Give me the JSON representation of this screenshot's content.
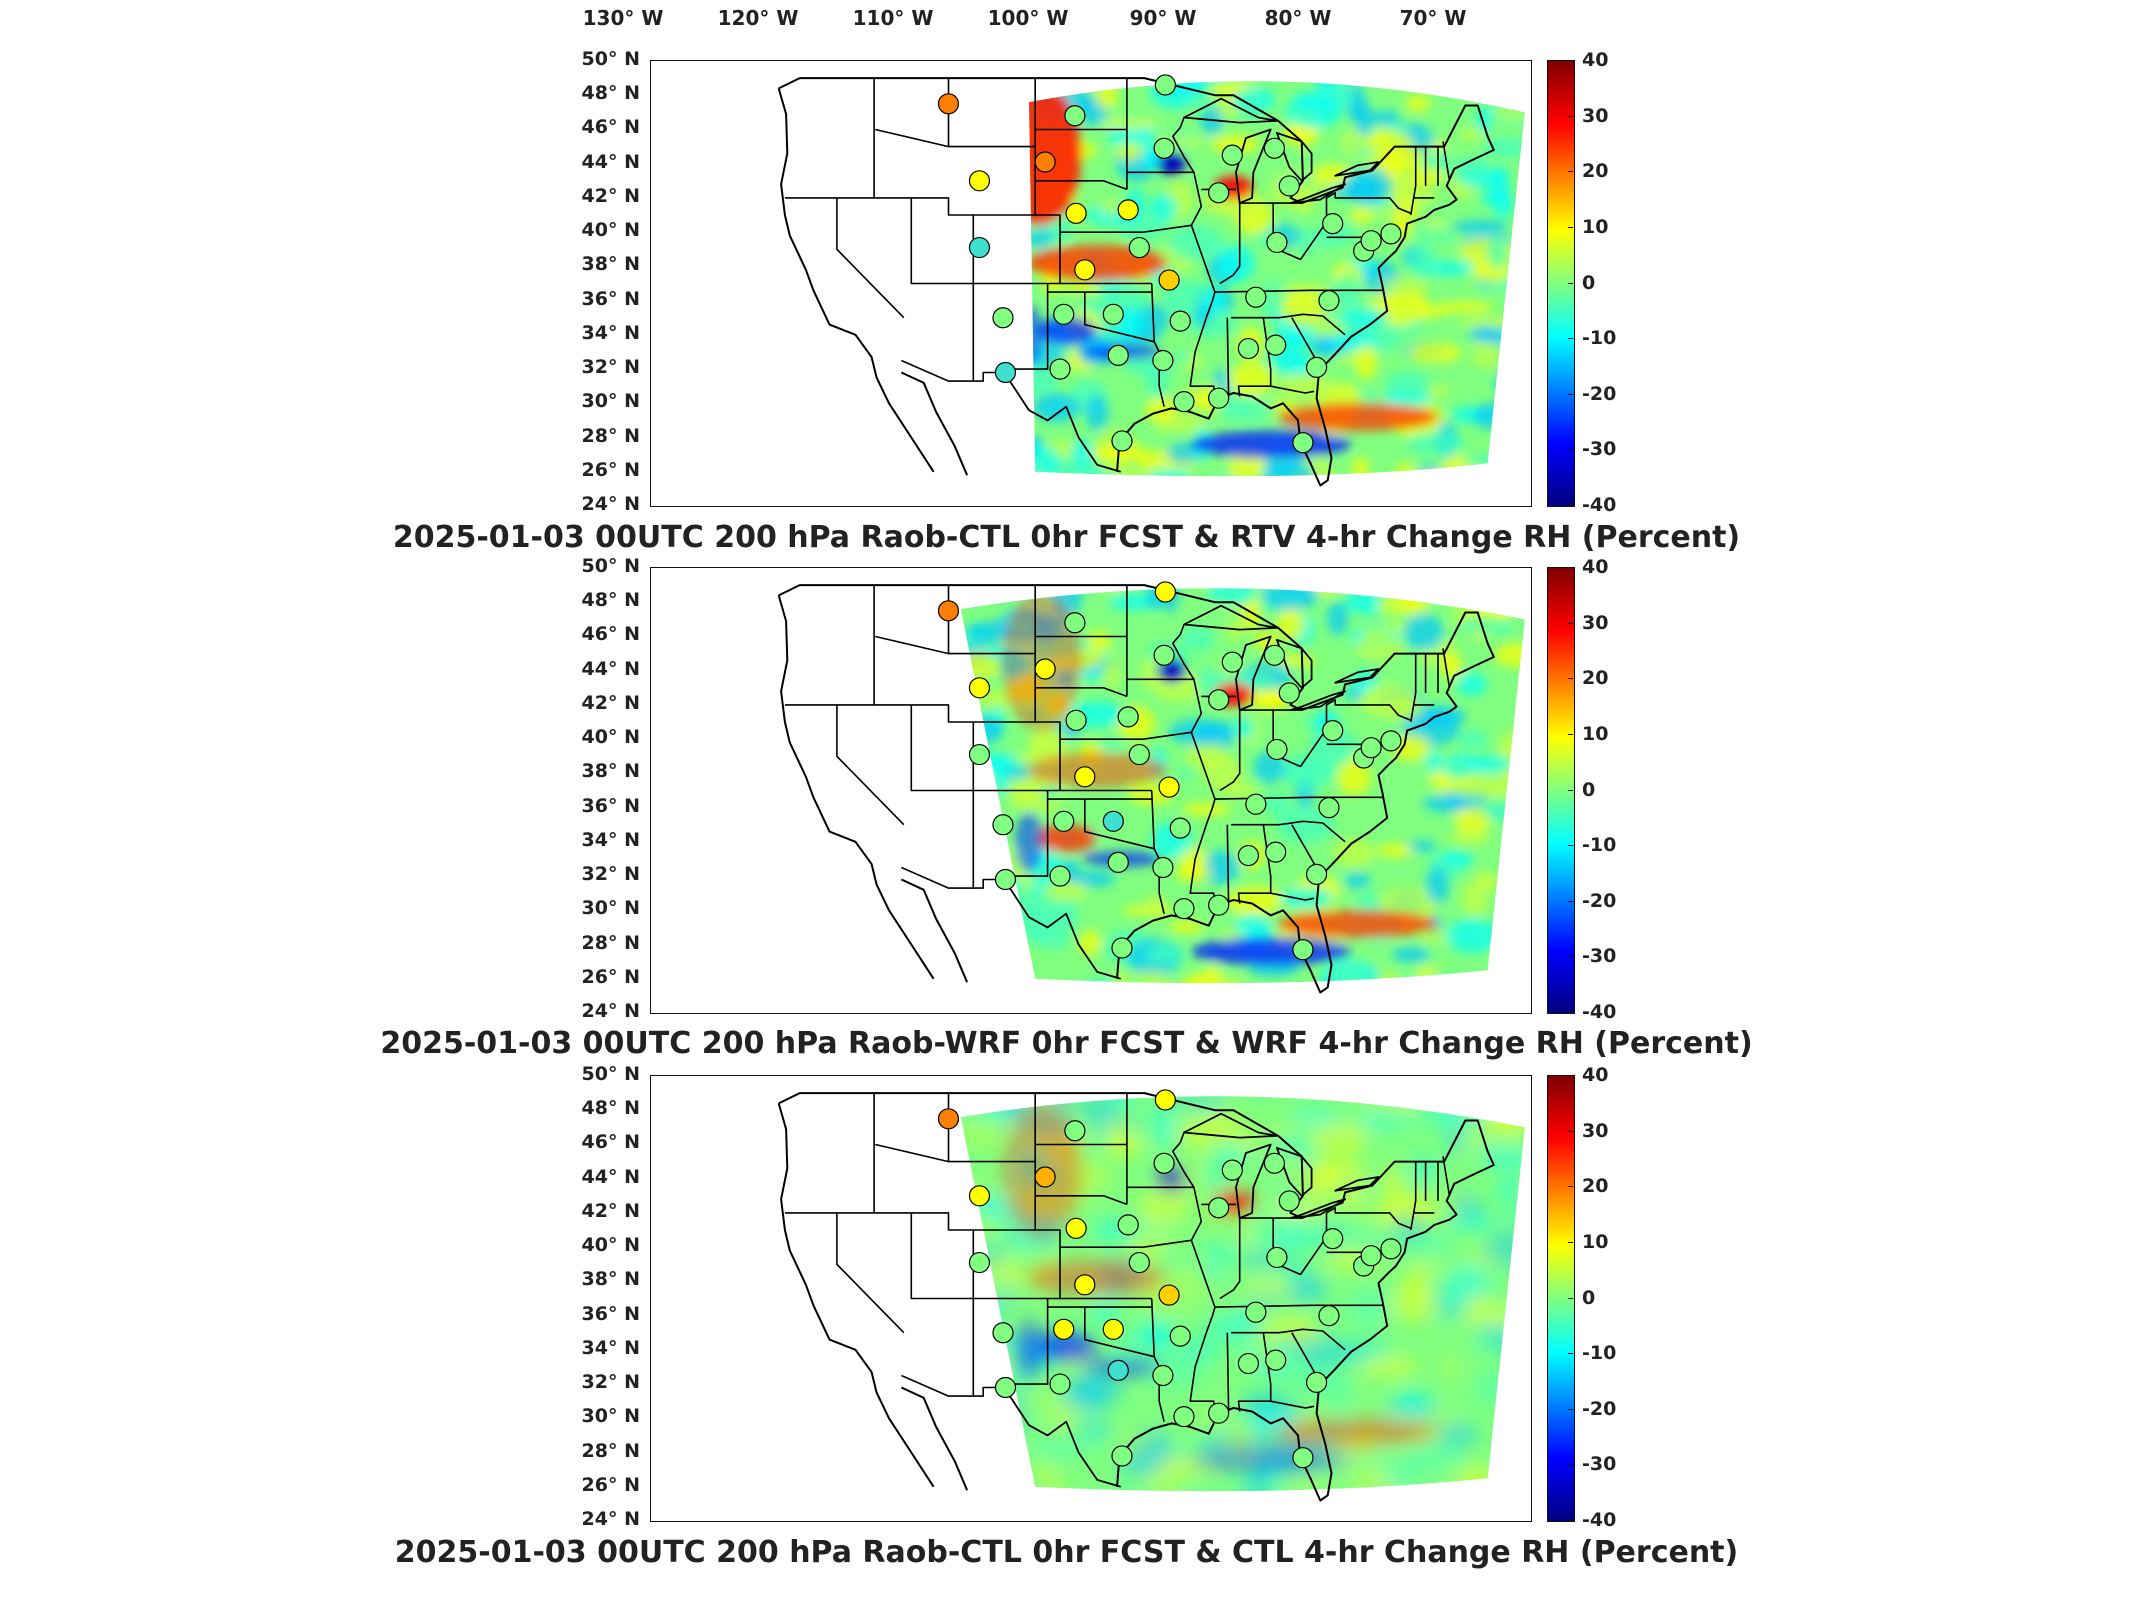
{
  "lon_labels": [
    "130° W",
    "120° W",
    "110° W",
    "100° W",
    "90° W",
    "80° W",
    "70° W"
  ],
  "lat_labels": [
    "50° N",
    "48° N",
    "46° N",
    "44° N",
    "42° N",
    "40° N",
    "38° N",
    "36° N",
    "34° N",
    "32° N",
    "30° N",
    "28° N",
    "26° N",
    "24° N"
  ],
  "colorbar_ticks": [
    "40",
    "30",
    "20",
    "10",
    "0",
    "-10",
    "-20",
    "-30",
    "-40"
  ],
  "panels": [
    {
      "title": "2025-01-03 00UTC 200 hPa Raob-CTL 0hr FCST & RTV 4-hr Change RH (Percent)"
    },
    {
      "title": "2025-01-03 00UTC 200 hPa Raob-WRF 0hr FCST & WRF 4-hr Change RH (Percent)"
    },
    {
      "title": "2025-01-03 00UTC 200 hPa Raob-CTL 0hr FCST & CTL 4-hr Change RH (Percent)"
    }
  ],
  "colormap": [
    "#00007f",
    "#0000ff",
    "#0080ff",
    "#00ffff",
    "#80ff80",
    "#ffff00",
    "#ff8000",
    "#ff0000",
    "#7f0000"
  ],
  "stations": [
    {
      "lon": -111.0,
      "lat": 47.5
    },
    {
      "lon": -108.5,
      "lat": 43.0
    },
    {
      "lon": -108.5,
      "lat": 39.1
    },
    {
      "lon": -106.6,
      "lat": 35.0
    },
    {
      "lon": -106.4,
      "lat": 31.8
    },
    {
      "lon": -103.2,
      "lat": 44.1
    },
    {
      "lon": -100.8,
      "lat": 46.8
    },
    {
      "lon": -100.7,
      "lat": 41.1
    },
    {
      "lon": -100.0,
      "lat": 37.8
    },
    {
      "lon": -101.7,
      "lat": 35.2
    },
    {
      "lon": -102.0,
      "lat": 32.0
    },
    {
      "lon": -97.7,
      "lat": 35.2
    },
    {
      "lon": -97.3,
      "lat": 32.8
    },
    {
      "lon": -97.0,
      "lat": 27.8
    },
    {
      "lon": -96.5,
      "lat": 41.3
    },
    {
      "lon": -95.6,
      "lat": 39.1
    },
    {
      "lon": -93.5,
      "lat": 48.6
    },
    {
      "lon": -93.6,
      "lat": 44.9
    },
    {
      "lon": -93.2,
      "lat": 37.2
    },
    {
      "lon": -92.3,
      "lat": 34.8
    },
    {
      "lon": -93.7,
      "lat": 32.5
    },
    {
      "lon": -92.0,
      "lat": 30.1
    },
    {
      "lon": -89.2,
      "lat": 42.3
    },
    {
      "lon": -88.1,
      "lat": 44.5
    },
    {
      "lon": -86.2,
      "lat": 36.2
    },
    {
      "lon": -86.8,
      "lat": 33.2
    },
    {
      "lon": -89.2,
      "lat": 30.3
    },
    {
      "lon": -84.7,
      "lat": 44.9
    },
    {
      "lon": -83.5,
      "lat": 42.7
    },
    {
      "lon": -84.5,
      "lat": 39.4
    },
    {
      "lon": -84.6,
      "lat": 33.4
    },
    {
      "lon": -81.3,
      "lat": 32.1
    },
    {
      "lon": -80.0,
      "lat": 40.5
    },
    {
      "lon": -80.3,
      "lat": 36.0
    },
    {
      "lon": -82.4,
      "lat": 27.7
    },
    {
      "lon": -77.5,
      "lat": 38.9
    },
    {
      "lon": -76.9,
      "lat": 39.5
    },
    {
      "lon": -75.3,
      "lat": 39.9
    }
  ],
  "station_colors": [
    [
      "#ff8000",
      "#ffff00",
      "#40e0d0",
      "#80ff80",
      "#40e0d0",
      "#ff8000",
      "#80ff80",
      "#ffff00",
      "#ffff00",
      "#80ff80",
      "#80ff80",
      "#80ff80",
      "#80ff80",
      "#80ff80",
      "#ffff00",
      "#80ff80",
      "#80ff80",
      "#80ff80",
      "#ffd000",
      "#80ff80",
      "#80ff80",
      "#80ff80",
      "#80ff80",
      "#80ff80",
      "#80ff80",
      "#80ff80",
      "#80ff80",
      "#80ff80",
      "#80ff80",
      "#80ff80",
      "#80ff80",
      "#80ff80",
      "#80ff80",
      "#80ff80",
      "#80ff80",
      "#80ff80",
      "#80ff80",
      "#80ff80"
    ],
    [
      "#ff8000",
      "#ffff00",
      "#80ff80",
      "#80ff80",
      "#80ff80",
      "#ffff00",
      "#80ff80",
      "#80ff80",
      "#ffff00",
      "#80ff80",
      "#80ff80",
      "#40e0d0",
      "#80ff80",
      "#80ff80",
      "#80ff80",
      "#80ff80",
      "#ffff00",
      "#80ff80",
      "#ffff00",
      "#80ff80",
      "#80ff80",
      "#80ff80",
      "#80ff80",
      "#80ff80",
      "#80ff80",
      "#80ff80",
      "#80ff80",
      "#80ff80",
      "#80ff80",
      "#80ff80",
      "#80ff80",
      "#80ff80",
      "#80ff80",
      "#80ff80",
      "#80ff80",
      "#80ff80",
      "#80ff80",
      "#80ff80"
    ],
    [
      "#ff8000",
      "#ffff00",
      "#80ff80",
      "#80ff80",
      "#80ff80",
      "#ffb000",
      "#80ff80",
      "#ffff00",
      "#ffff00",
      "#ffff00",
      "#80ff80",
      "#ffff00",
      "#40e0d0",
      "#80ff80",
      "#80ff80",
      "#80ff80",
      "#ffff00",
      "#80ff80",
      "#ffd000",
      "#80ff80",
      "#80ff80",
      "#80ff80",
      "#80ff80",
      "#80ff80",
      "#80ff80",
      "#80ff80",
      "#80ff80",
      "#80ff80",
      "#80ff80",
      "#80ff80",
      "#80ff80",
      "#80ff80",
      "#80ff80",
      "#80ff80",
      "#80ff80",
      "#80ff80",
      "#80ff80",
      "#80ff80"
    ]
  ]
}
